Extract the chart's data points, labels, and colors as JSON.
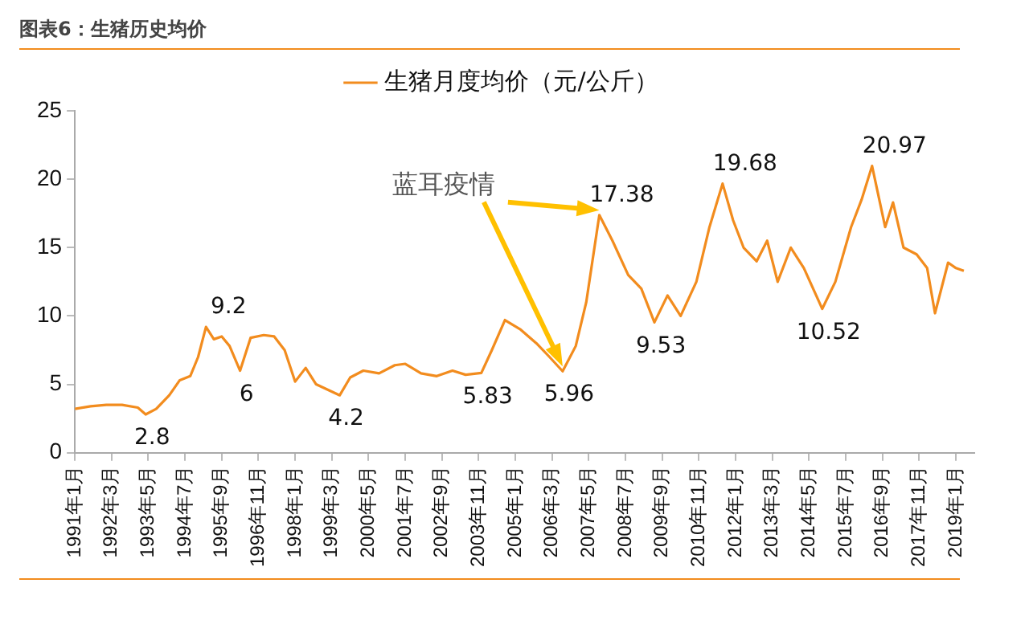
{
  "chart_data": {
    "type": "line",
    "title": "图表6：生猪历史均价",
    "legend": "top",
    "marker": "none",
    "grid": false,
    "x": [
      "1991-01",
      "1991-07",
      "1992-01",
      "1992-07",
      "1993-01",
      "1993-04",
      "1993-08",
      "1994-01",
      "1994-05",
      "1994-09",
      "1994-12",
      "1995-03",
      "1995-06",
      "1995-09",
      "1995-12",
      "1996-04",
      "1996-08",
      "1997-01",
      "1997-05",
      "1997-09",
      "1998-01",
      "1998-05",
      "1998-09",
      "1999-06",
      "1999-10",
      "2000-03",
      "2000-09",
      "2001-03",
      "2001-07",
      "2002-01",
      "2002-07",
      "2003-01",
      "2003-06",
      "2003-12",
      "2004-04",
      "2004-09",
      "2005-03",
      "2005-09",
      "2006-02",
      "2006-07",
      "2006-12",
      "2007-04",
      "2007-09",
      "2008-02",
      "2008-08",
      "2009-01",
      "2009-06",
      "2009-11",
      "2010-04",
      "2010-10",
      "2011-03",
      "2011-08",
      "2011-12",
      "2012-04",
      "2012-09",
      "2013-01",
      "2013-05",
      "2013-10",
      "2014-03",
      "2014-10",
      "2015-03",
      "2015-09",
      "2016-01",
      "2016-05",
      "2016-10",
      "2017-01",
      "2017-05",
      "2017-10",
      "2018-02",
      "2018-05",
      "2018-10",
      "2019-01",
      "2019-04"
    ],
    "series": [
      {
        "name": "生猪月度均价（元/公斤）",
        "color": "#f28c1e",
        "values": [
          3.2,
          3.4,
          3.5,
          3.5,
          3.3,
          2.8,
          3.2,
          4.2,
          5.3,
          5.6,
          7.0,
          9.2,
          8.3,
          8.5,
          7.8,
          6,
          8.4,
          8.6,
          8.5,
          7.5,
          5.2,
          6.2,
          5.0,
          4.2,
          5.5,
          6.0,
          5.8,
          6.4,
          6.5,
          5.8,
          5.6,
          6.0,
          5.7,
          5.83,
          7.5,
          9.7,
          9.0,
          8.0,
          7.0,
          5.96,
          7.8,
          11.0,
          17.38,
          15.5,
          13.0,
          12.0,
          9.53,
          11.5,
          10.0,
          12.5,
          16.5,
          19.68,
          17.0,
          15.0,
          14.0,
          15.5,
          12.5,
          15.0,
          13.5,
          10.52,
          12.5,
          16.5,
          18.5,
          20.97,
          16.5,
          18.3,
          15.0,
          14.5,
          13.5,
          10.2,
          13.9,
          13.5,
          13.3
        ],
        "value_labels": [
          null,
          null,
          null,
          null,
          null,
          "2.8",
          null,
          null,
          null,
          null,
          null,
          "9.2",
          null,
          null,
          null,
          "6",
          null,
          null,
          null,
          null,
          null,
          null,
          null,
          "4.2",
          null,
          null,
          null,
          null,
          null,
          null,
          null,
          null,
          null,
          "5.83",
          null,
          null,
          null,
          null,
          null,
          "5.96",
          null,
          null,
          "17.38",
          null,
          null,
          null,
          "9.53",
          null,
          null,
          null,
          null,
          "19.68",
          null,
          null,
          null,
          null,
          null,
          null,
          null,
          "10.52",
          null,
          null,
          null,
          "20.97",
          null,
          null,
          null,
          null,
          null,
          null,
          null,
          null,
          null
        ]
      }
    ],
    "xlim": [
      "1991-01",
      "2019-08"
    ],
    "xticks": [
      {
        "value": "1991-01",
        "label": "1991年1月"
      },
      {
        "value": "1992-03",
        "label": "1992年3月"
      },
      {
        "value": "1993-05",
        "label": "1993年5月"
      },
      {
        "value": "1994-07",
        "label": "1994年7月"
      },
      {
        "value": "1995-09",
        "label": "1995年9月"
      },
      {
        "value": "1996-11",
        "label": "1996年11月"
      },
      {
        "value": "1998-01",
        "label": "1998年1月"
      },
      {
        "value": "1999-03",
        "label": "1999年3月"
      },
      {
        "value": "2000-05",
        "label": "2000年5月"
      },
      {
        "value": "2001-07",
        "label": "2001年7月"
      },
      {
        "value": "2002-09",
        "label": "2002年9月"
      },
      {
        "value": "2003-11",
        "label": "2003年11月"
      },
      {
        "value": "2005-01",
        "label": "2005年1月"
      },
      {
        "value": "2006-03",
        "label": "2006年3月"
      },
      {
        "value": "2007-05",
        "label": "2007年5月"
      },
      {
        "value": "2008-07",
        "label": "2008年7月"
      },
      {
        "value": "2009-09",
        "label": "2009年9月"
      },
      {
        "value": "2010-11",
        "label": "2010年11月"
      },
      {
        "value": "2012-01",
        "label": "2012年1月"
      },
      {
        "value": "2013-03",
        "label": "2013年3月"
      },
      {
        "value": "2014-05",
        "label": "2014年5月"
      },
      {
        "value": "2015-07",
        "label": "2015年7月"
      },
      {
        "value": "2016-09",
        "label": "2016年9月"
      },
      {
        "value": "2017-11",
        "label": "2017年11月"
      },
      {
        "value": "2019-01",
        "label": "2019年1月"
      }
    ],
    "ylim": [
      0,
      25
    ],
    "yticks": [
      0,
      5,
      10,
      15,
      20,
      25
    ],
    "annotations": [
      "蓝耳疫情"
    ]
  }
}
